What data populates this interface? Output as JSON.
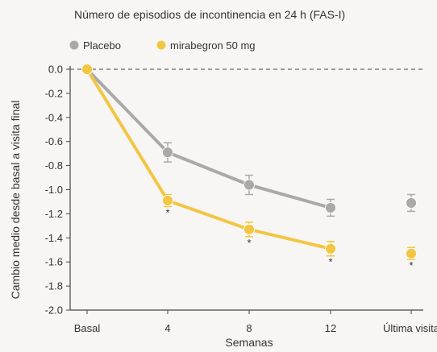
{
  "colors": {
    "placebo": "#a9a9a9",
    "mirabegron": "#f2c644",
    "axis": "#444444"
  },
  "chart_data": {
    "type": "line",
    "title": "Número de episodios de incontinencia en 24 h (FAS-I)",
    "xlabel": "Semanas",
    "ylabel": "Cambio medio desde basal a visita final",
    "categories": [
      "Basal",
      "4",
      "8",
      "12",
      "Última visita"
    ],
    "ylim": [
      -2.0,
      0.0
    ],
    "yticks": [
      0.0,
      -0.2,
      -0.4,
      -0.6,
      -0.8,
      -1.0,
      -1.2,
      -1.4,
      -1.6,
      -1.8,
      -2.0
    ],
    "ytick_labels": [
      "0.0",
      "-0.2",
      "-0.4",
      "-0.6",
      "-0.8",
      "-1.0",
      "-1.2",
      "-1.4",
      "-1.6",
      "-1.8",
      "-2.0"
    ],
    "reference_line": 0.0,
    "legend_position": "top-left",
    "series": [
      {
        "name": "Placebo",
        "values": [
          0.0,
          -0.69,
          -0.96,
          -1.15,
          -1.11
        ],
        "errors": [
          0.0,
          0.08,
          0.08,
          0.07,
          0.07
        ],
        "connected": [
          true,
          true,
          true,
          true,
          false
        ],
        "significance": [
          "",
          "",
          "",
          "",
          ""
        ]
      },
      {
        "name": "mirabegron 50 mg",
        "values": [
          0.0,
          -1.09,
          -1.33,
          -1.49,
          -1.53
        ],
        "errors": [
          0.0,
          0.05,
          0.06,
          0.06,
          0.05
        ],
        "connected": [
          true,
          true,
          true,
          true,
          false
        ],
        "significance": [
          "",
          "*",
          "*",
          "*",
          "*"
        ]
      }
    ]
  }
}
